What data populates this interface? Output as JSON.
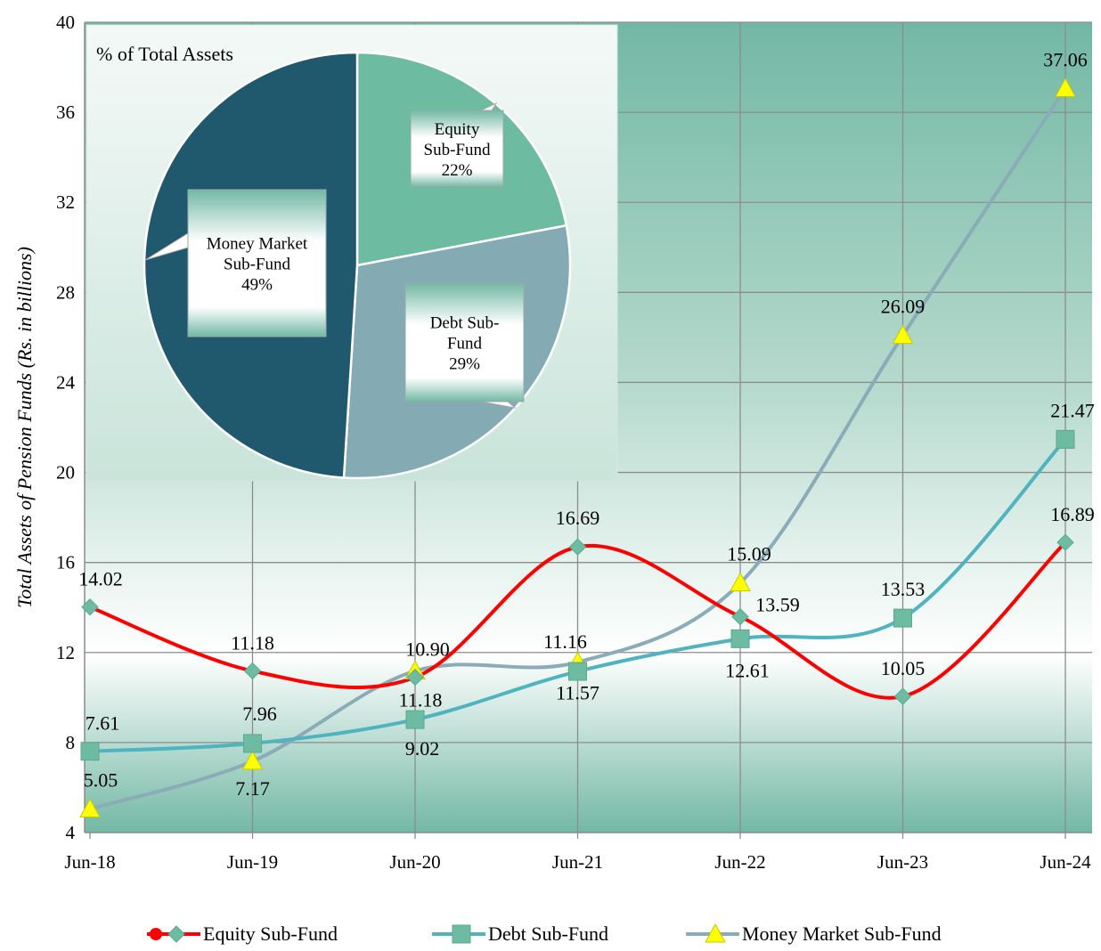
{
  "chart_data": [
    {
      "type": "line",
      "ylabel": "Total Assets  of Pension Funds (Rs. in billions)",
      "categories": [
        "Jun-18",
        "Jun-19",
        "Jun-20",
        "Jun-21",
        "Jun-22",
        "Jun-23",
        "Jun-24"
      ],
      "ylim": [
        4,
        40
      ],
      "yticks": [
        4,
        8,
        12,
        16,
        20,
        24,
        28,
        32,
        36,
        40
      ],
      "grid": true,
      "legend_position": "bottom",
      "series": [
        {
          "name": "Equity Sub-Fund",
          "values": [
            14.02,
            11.18,
            10.9,
            16.69,
            13.59,
            10.05,
            16.89
          ],
          "labels": [
            "14.02",
            "11.18",
            "10.90",
            "16.69",
            "13.59",
            "10.05",
            "16.89"
          ],
          "line_color": "#ff0000",
          "marker_color": "#6dbba0",
          "marker": "diamond"
        },
        {
          "name": "Debt Sub-Fund",
          "values": [
            7.61,
            7.96,
            9.02,
            11.16,
            12.61,
            13.53,
            21.47
          ],
          "labels": [
            "7.61",
            "7.96",
            "9.02",
            "11.16",
            "12.61",
            "13.53",
            "21.47"
          ],
          "line_color": "#4fb3c0",
          "marker_color": "#6dbba0",
          "marker": "square"
        },
        {
          "name": "Money Market Sub-Fund",
          "values": [
            5.05,
            7.17,
            11.18,
            11.57,
            15.09,
            26.09,
            37.06
          ],
          "labels": [
            "5.05",
            "7.17",
            "11.18",
            "11.57",
            "15.09",
            "26.09",
            "37.06"
          ],
          "line_color": "#8aabb8",
          "marker_color": "#ffff00",
          "marker": "triangle"
        }
      ]
    },
    {
      "type": "pie",
      "title": "% of Total Assets",
      "slices": [
        {
          "name": "Equity Sub-Fund",
          "label_lines": [
            "Equity",
            "Sub-Fund"
          ],
          "value": 22,
          "percent_label": "22%",
          "color": "#6dbba0"
        },
        {
          "name": "Debt Sub-Fund",
          "label_lines": [
            "Debt Sub-",
            "Fund"
          ],
          "value": 29,
          "percent_label": "29%",
          "color": "#84aab4"
        },
        {
          "name": "Money Market Sub-Fund",
          "label_lines": [
            "Money Market",
            "Sub-Fund"
          ],
          "value": 49,
          "percent_label": "49%",
          "color": "#20586e"
        }
      ]
    }
  ],
  "colors": {
    "plot_dark": "#72b8a4",
    "plot_light": "#ffffff",
    "grid": "#8c8c8c"
  }
}
